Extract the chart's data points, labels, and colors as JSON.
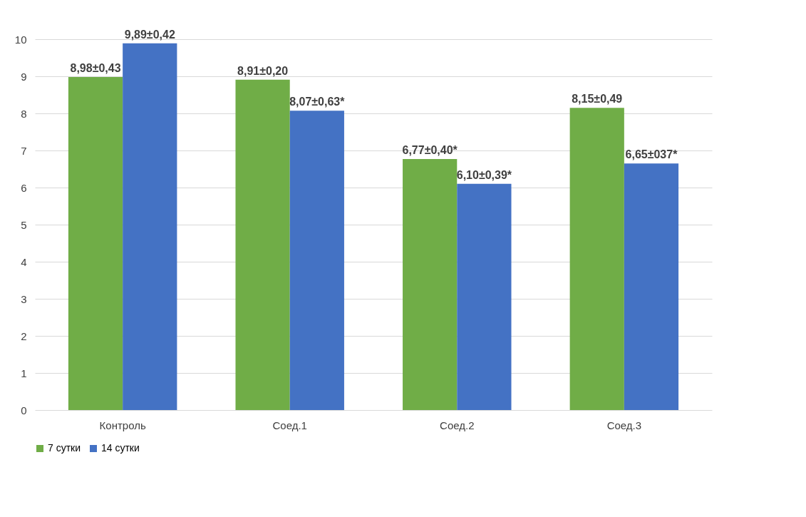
{
  "chart_data": {
    "type": "bar",
    "categories": [
      "Контроль",
      "Соед.1",
      "Соед.2",
      "Соед.3"
    ],
    "series": [
      {
        "name": "7 сутки",
        "color": "#70ad47",
        "values": [
          8.98,
          8.91,
          6.77,
          8.15
        ],
        "value_labels": [
          "8,98±0,43",
          "8,91±0,20",
          "6,77±0,40*",
          "8,15±0,49"
        ]
      },
      {
        "name": "14 сутки",
        "color": "#4472c4",
        "values": [
          9.89,
          8.07,
          6.1,
          6.65
        ],
        "value_labels": [
          "9,89±0,42",
          "8,07±0,63*",
          "6,10±0,39*",
          "6,65±037*"
        ]
      }
    ],
    "ylim": [
      0,
      10
    ],
    "yticks": [
      0,
      1,
      2,
      3,
      4,
      5,
      6,
      7,
      8,
      9,
      10
    ],
    "grid": "y",
    "legend": "bottom"
  }
}
